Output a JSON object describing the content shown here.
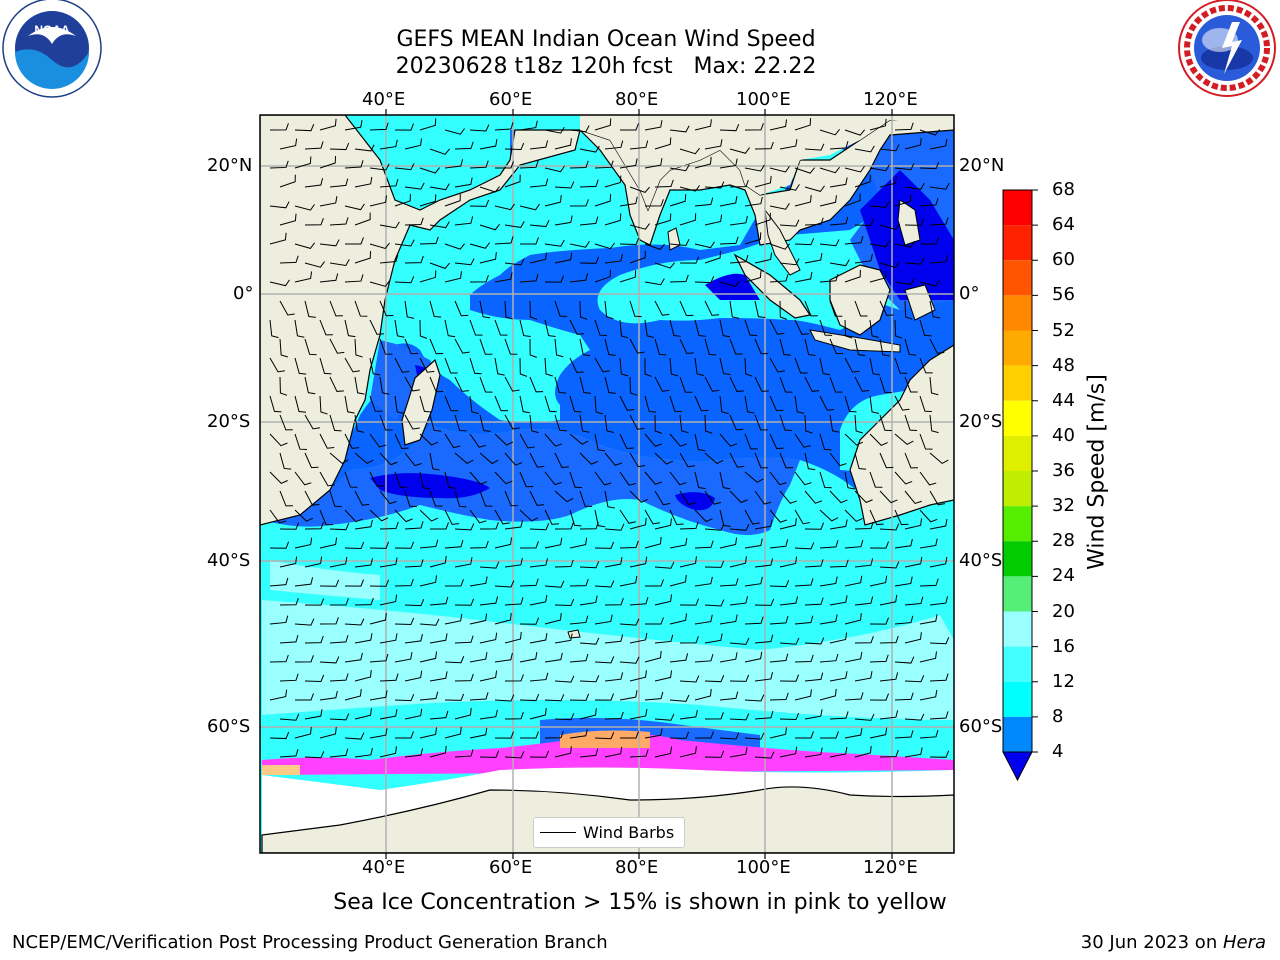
{
  "header": {
    "title_line1": "GEFS MEAN Indian Ocean Wind Speed",
    "title_line2": "20230628 t18z 120h fcst   Max: 22.22"
  },
  "logos": {
    "left": {
      "name": "NOAA",
      "ring_text": "NATIONAL OCEANIC AND ATMOSPHERIC ADMINISTRATION · U.S. DEPARTMENT OF COMMERCE"
    },
    "right": {
      "name": "NATIONAL WEATHER SERVICE"
    }
  },
  "map": {
    "projection": "cylindrical",
    "lon_ticks": [
      "40°E",
      "60°E",
      "80°E",
      "100°E",
      "120°E"
    ],
    "lat_ticks": [
      "20°N",
      "0°",
      "20°S",
      "40°S",
      "60°S"
    ],
    "gridlines": true,
    "wind_speed_max": 22.22,
    "legend": {
      "label": "Wind Barbs",
      "placement": "bottom-center"
    },
    "colors": {
      "land": "#eeeede",
      "ice_shelf": "#ffffff",
      "sea_ice": "#ff40ff",
      "grid": "#b0b0b0"
    }
  },
  "colorbar": {
    "title": "Wind Speed [m/s]",
    "ticks": [
      "68",
      "64",
      "60",
      "56",
      "52",
      "48",
      "44",
      "40",
      "36",
      "32",
      "28",
      "24",
      "20",
      "16",
      "12",
      "8",
      "4"
    ],
    "bands": [
      {
        "from": 64,
        "to": 68,
        "color": "#ff0000"
      },
      {
        "from": 60,
        "to": 64,
        "color": "#ff2200"
      },
      {
        "from": 56,
        "to": 60,
        "color": "#ff5500"
      },
      {
        "from": 52,
        "to": 56,
        "color": "#ff8800"
      },
      {
        "from": 48,
        "to": 52,
        "color": "#ffaa00"
      },
      {
        "from": 44,
        "to": 48,
        "color": "#ffd000"
      },
      {
        "from": 40,
        "to": 44,
        "color": "#ffff00"
      },
      {
        "from": 36,
        "to": 40,
        "color": "#e0ee00"
      },
      {
        "from": 32,
        "to": 36,
        "color": "#c0ee00"
      },
      {
        "from": 28,
        "to": 32,
        "color": "#55ee00"
      },
      {
        "from": 24,
        "to": 28,
        "color": "#00cc00"
      },
      {
        "from": 20,
        "to": 24,
        "color": "#55ee77"
      },
      {
        "from": 16,
        "to": 20,
        "color": "#99ffff"
      },
      {
        "from": 12,
        "to": 16,
        "color": "#44ffff"
      },
      {
        "from": 8,
        "to": 12,
        "color": "#00ffff"
      },
      {
        "from": 4,
        "to": 8,
        "color": "#0088ff"
      }
    ],
    "under_color": "#0000ee"
  },
  "footer": {
    "caption": "Sea Ice Concentration > 15% is shown in pink to yellow",
    "left": "NCEP/EMC/Verification Post Processing Product Generation Branch",
    "right_date": "30 Jun 2023 on ",
    "right_host": "Hera"
  }
}
